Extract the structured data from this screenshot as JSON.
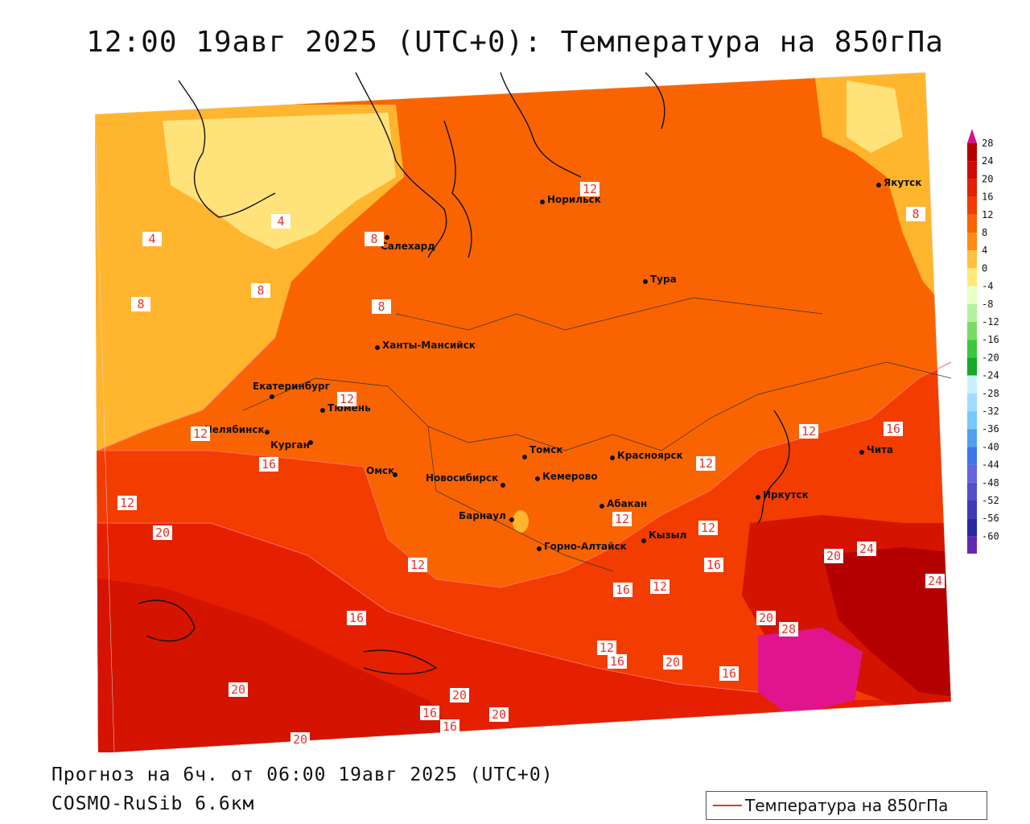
{
  "header": {
    "title": "12:00 19авг 2025 (UTC+0): Температура на 850гПа"
  },
  "footer": {
    "forecast_line": "Прогноз на 6ч. от 06:00 19авг 2025 (UTC+0)",
    "model_line": "COSMO-RuSib 6.6км"
  },
  "legend": {
    "line_label": "Температура на 850гПа",
    "line_color": "#e5342a"
  },
  "color_scale": {
    "labels": [
      "28",
      "24",
      "20",
      "16",
      "12",
      "8",
      "4",
      "0",
      "-4",
      "-8",
      "-12",
      "-16",
      "-20",
      "-24",
      "-28",
      "-32",
      "-36",
      "-40",
      "-44",
      "-48",
      "-52",
      "-56",
      "-60"
    ],
    "colors": [
      "#b40000",
      "#cf0a00",
      "#e52000",
      "#f23c00",
      "#fa6400",
      "#ff8c14",
      "#ffc040",
      "#ffe878",
      "#e8ffc8",
      "#b4f0a0",
      "#78dc64",
      "#3cc83c",
      "#14aa28",
      "#c8f0ff",
      "#a0dcff",
      "#78c8ff",
      "#50a0f0",
      "#3c78e6",
      "#6464dc",
      "#5050c8",
      "#3c3cb4",
      "#2828a0",
      "#6428b4"
    ],
    "top_arrow_color": "#d2148c",
    "bottom_arrow_color": "#9632c8"
  },
  "cities": [
    {
      "name": "Якутск"
    },
    {
      "name": "Норильск"
    },
    {
      "name": "Салехард"
    },
    {
      "name": "Тура"
    },
    {
      "name": "Ханты-Мансийск"
    },
    {
      "name": "Екатеринбург"
    },
    {
      "name": "Тюмень"
    },
    {
      "name": "Челябинск"
    },
    {
      "name": "Курган"
    },
    {
      "name": "Омск"
    },
    {
      "name": "Томск"
    },
    {
      "name": "Красноярск"
    },
    {
      "name": "Новосибирск"
    },
    {
      "name": "Кемерово"
    },
    {
      "name": "Абакан"
    },
    {
      "name": "Иркутск"
    },
    {
      "name": "Чита"
    },
    {
      "name": "Барнаул"
    },
    {
      "name": "Кызыл"
    },
    {
      "name": "Горно-Алтайск"
    }
  ],
  "isotherm_labels": [
    "12",
    "4",
    "8",
    "8",
    "4",
    "8",
    "8",
    "8",
    "12",
    "12",
    "12",
    "16",
    "12",
    "12",
    "12",
    "16",
    "20",
    "12",
    "12",
    "12",
    "16",
    "16",
    "20",
    "24",
    "16",
    "20",
    "24",
    "28",
    "12",
    "16",
    "20",
    "16",
    "20",
    "16",
    "20",
    "20",
    "16",
    "20"
  ]
}
